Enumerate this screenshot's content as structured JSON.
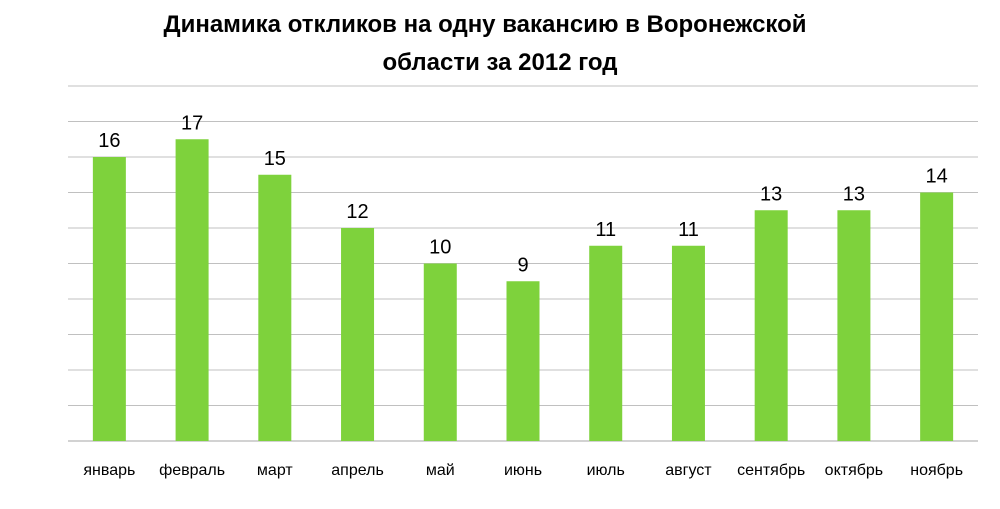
{
  "chart_data": {
    "type": "bar",
    "title_line1": "Динамика откликов на одну вакансию в Воронежской",
    "title_line2": "области за 2012 год",
    "categories": [
      "январь",
      "февраль",
      "март",
      "апрель",
      "май",
      "июнь",
      "июль",
      "август",
      "сентябрь",
      "октябрь",
      "ноябрь"
    ],
    "values": [
      16,
      17,
      15,
      12,
      10,
      9,
      11,
      11,
      13,
      13,
      14
    ],
    "labels": [
      "16",
      "17",
      "15",
      "12",
      "10",
      "9",
      "11",
      "11",
      "13",
      "13",
      "14"
    ],
    "ylim": [
      0,
      20
    ],
    "grid": true,
    "bar_color": "#7ed23c",
    "grid_color": "#c0c0c0"
  }
}
